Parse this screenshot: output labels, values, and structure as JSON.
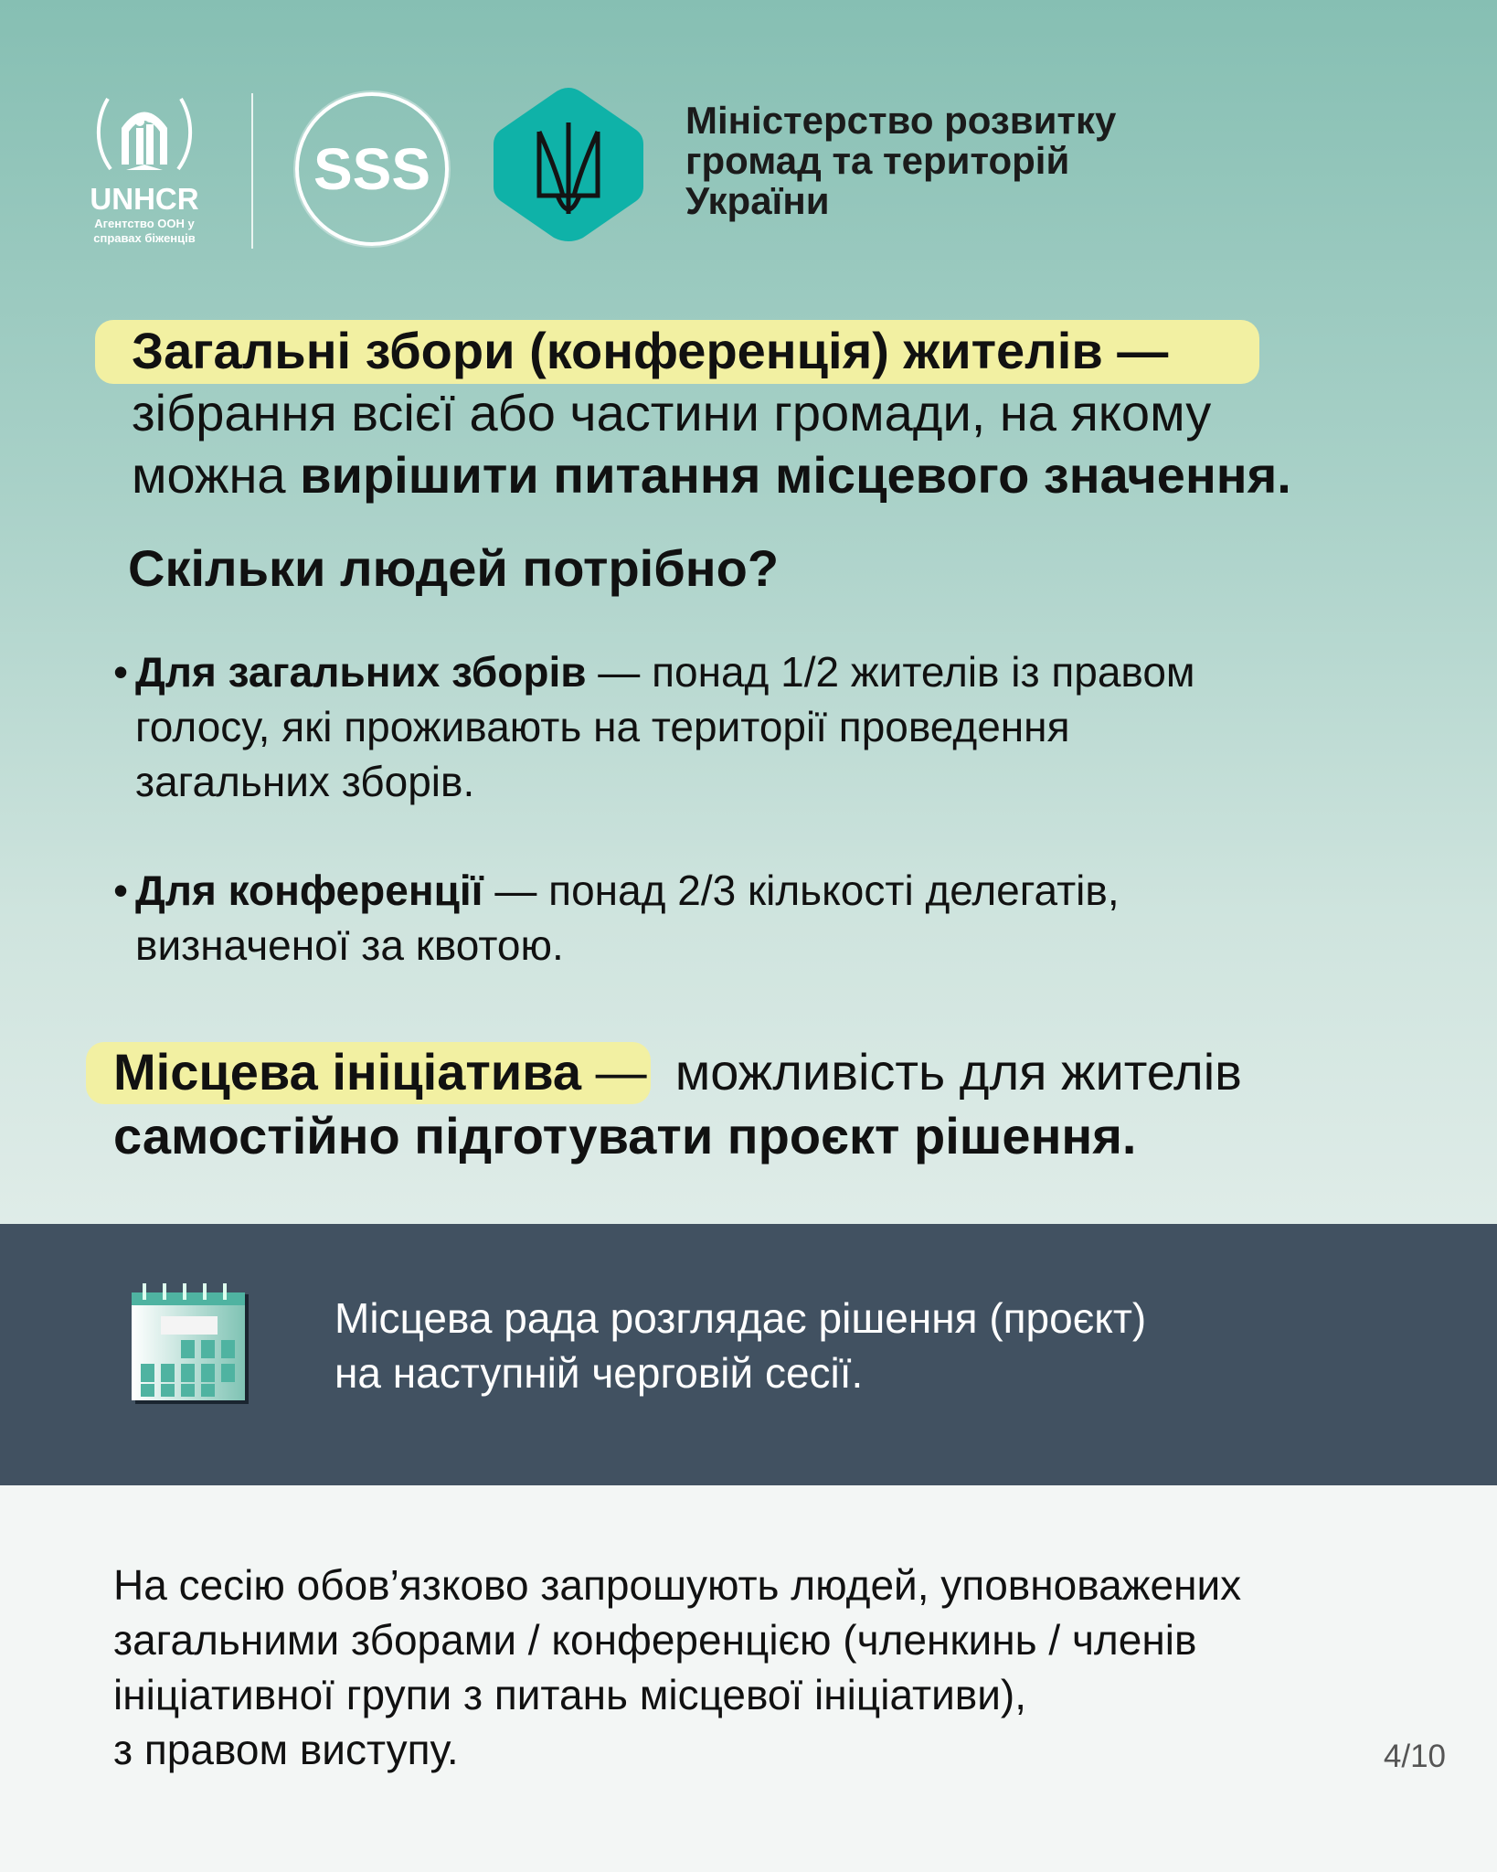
{
  "logos": {
    "unhcr_name": "UNHCR",
    "unhcr_sub": "Агентство ООН у справах біженців",
    "sss": "SSS",
    "ministry_lines": [
      "Міністерство розвитку",
      "громад та територій",
      "України"
    ]
  },
  "definition1": {
    "term": "Загальні збори (конференція) жителів —",
    "line2": "зібрання всієї або частини громади, на якому",
    "line3_regular": "можна ",
    "line3_bold": "вирішити питання місцевого значення."
  },
  "question": "Скільки людей потрібно?",
  "bullets": [
    {
      "bold": "Для загальних зборів",
      "text_lines": [
        " — понад 1/2 жителів із правом",
        "голосу, які проживають на території проведення",
        "загальних зборів."
      ]
    },
    {
      "bold": "Для конференції",
      "text_lines": [
        " — понад 2/3 кількості делегатів,",
        "визначеної за квотою."
      ]
    }
  ],
  "definition2": {
    "term": "Місцева ініціатива",
    "dash": " —  можливість для жителів",
    "line2": "самостійно підготувати проєкт рішення."
  },
  "band": {
    "icon": "calendar-icon",
    "lines": [
      "Місцева рада розглядає рішення (проєкт)",
      "на наступній черговій сесії."
    ]
  },
  "footer_lines": [
    "На сесію обов’язково запрошують людей, уповноважених",
    "загальними зборами / конференцією (членкинь / членів",
    "ініціативної групи з питань місцевої ініціативи),",
    "з правом виступу."
  ],
  "page_number": "4/10",
  "colors": {
    "highlight": "#f2f0a2",
    "band": "#415161",
    "accent": "#0fb2a8"
  }
}
